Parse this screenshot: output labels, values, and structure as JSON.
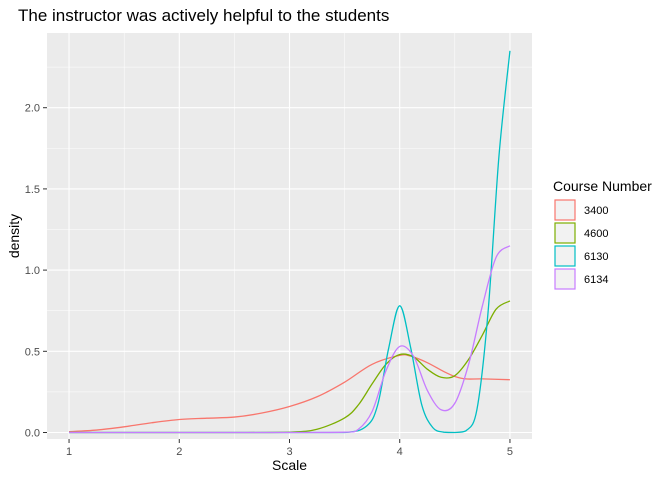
{
  "chart_data": {
    "type": "line",
    "title": "The instructor was actively helpful to the students",
    "xlabel": "Scale",
    "ylabel": "density",
    "xlim": [
      0.8,
      5.2
    ],
    "ylim": [
      -0.04,
      2.46
    ],
    "x_ticks": [
      "1",
      "2",
      "3",
      "4",
      "5"
    ],
    "x_tick_values": [
      1,
      2,
      3,
      4,
      5
    ],
    "y_ticks": [
      "0.0",
      "0.5",
      "1.0",
      "1.5",
      "2.0"
    ],
    "y_tick_values": [
      0,
      0.5,
      1.0,
      1.5,
      2.0
    ],
    "grid": true,
    "legend": {
      "title": "Course Number",
      "placement": "right"
    },
    "series": [
      {
        "name": "3400",
        "color": "#F8766D",
        "x": [
          1.0,
          1.25,
          1.5,
          1.75,
          2.0,
          2.25,
          2.5,
          2.75,
          3.0,
          3.25,
          3.5,
          3.75,
          4.0,
          4.1,
          4.25,
          4.4,
          4.5,
          4.6,
          4.75,
          5.0
        ],
        "y": [
          0.005,
          0.015,
          0.035,
          0.06,
          0.08,
          0.088,
          0.095,
          0.12,
          0.16,
          0.22,
          0.31,
          0.42,
          0.475,
          0.47,
          0.43,
          0.375,
          0.345,
          0.33,
          0.33,
          0.325
        ]
      },
      {
        "name": "4600",
        "color": "#7CAE00",
        "x": [
          1.0,
          2.0,
          2.5,
          3.0,
          3.25,
          3.5,
          3.625,
          3.75,
          3.875,
          4.0,
          4.125,
          4.25,
          4.375,
          4.5,
          4.625,
          4.75,
          4.875,
          5.0
        ],
        "y": [
          0.0,
          0.0,
          0.0,
          0.002,
          0.02,
          0.09,
          0.17,
          0.3,
          0.42,
          0.48,
          0.465,
          0.39,
          0.34,
          0.35,
          0.45,
          0.6,
          0.76,
          0.81
        ]
      },
      {
        "name": "6130",
        "color": "#00BFC4",
        "x": [
          1.0,
          2.0,
          3.0,
          3.5,
          3.7,
          3.8,
          3.9,
          4.0,
          4.1,
          4.2,
          4.3,
          4.4,
          4.5,
          4.6,
          4.7,
          4.8,
          4.9,
          5.0
        ],
        "y": [
          0.0,
          0.0,
          0.0,
          0.0,
          0.04,
          0.17,
          0.52,
          0.78,
          0.52,
          0.17,
          0.03,
          0.002,
          0.0,
          0.01,
          0.14,
          0.73,
          1.7,
          2.35
        ]
      },
      {
        "name": "6134",
        "color": "#C77CFF",
        "x": [
          1.0,
          2.0,
          3.0,
          3.5,
          3.625,
          3.75,
          3.875,
          4.0,
          4.125,
          4.25,
          4.375,
          4.5,
          4.625,
          4.75,
          4.875,
          5.0
        ],
        "y": [
          0.0,
          0.0,
          0.0,
          0.002,
          0.02,
          0.13,
          0.38,
          0.53,
          0.47,
          0.26,
          0.14,
          0.18,
          0.42,
          0.78,
          1.08,
          1.15
        ]
      }
    ]
  }
}
